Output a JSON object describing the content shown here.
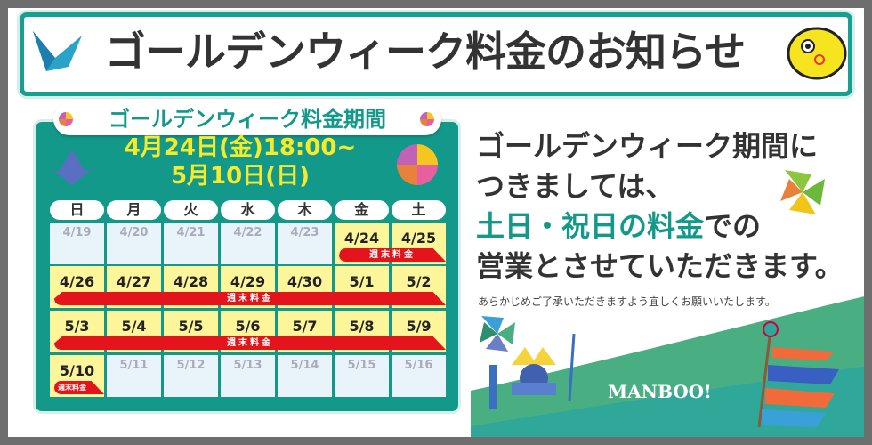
{
  "title": "ゴールデンウィーク料金のお知らせ",
  "calendar": {
    "heading": "ゴールデンウィーク料金期間",
    "period_line1": "4月24日(金)18:00~",
    "period_line2": "5月10日(日)",
    "weekdays": [
      "日",
      "月",
      "火",
      "水",
      "木",
      "金",
      "土"
    ],
    "weeks": [
      [
        {
          "d": "4/19",
          "on": false
        },
        {
          "d": "4/20",
          "on": false
        },
        {
          "d": "4/21",
          "on": false
        },
        {
          "d": "4/22",
          "on": false
        },
        {
          "d": "4/23",
          "on": false
        },
        {
          "d": "4/24",
          "on": true
        },
        {
          "d": "4/25",
          "on": true
        }
      ],
      [
        {
          "d": "4/26",
          "on": true
        },
        {
          "d": "4/27",
          "on": true
        },
        {
          "d": "4/28",
          "on": true
        },
        {
          "d": "4/29",
          "on": true
        },
        {
          "d": "4/30",
          "on": true
        },
        {
          "d": "5/1",
          "on": true
        },
        {
          "d": "5/2",
          "on": true
        }
      ],
      [
        {
          "d": "5/3",
          "on": true
        },
        {
          "d": "5/4",
          "on": true
        },
        {
          "d": "5/5",
          "on": true
        },
        {
          "d": "5/6",
          "on": true
        },
        {
          "d": "5/7",
          "on": true
        },
        {
          "d": "5/8",
          "on": true
        },
        {
          "d": "5/9",
          "on": true
        }
      ],
      [
        {
          "d": "5/10",
          "on": true
        },
        {
          "d": "5/11",
          "on": false
        },
        {
          "d": "5/12",
          "on": false
        },
        {
          "d": "5/13",
          "on": false
        },
        {
          "d": "5/14",
          "on": false
        },
        {
          "d": "5/15",
          "on": false
        },
        {
          "d": "5/16",
          "on": false
        }
      ]
    ],
    "weekend_rate_label": "週末料金"
  },
  "message": {
    "line1": "ゴールデンウィーク期間に",
    "line2": "つきましては、",
    "line3_highlight": "土日・祝日の料金",
    "line3_rest": "での",
    "line4": "営業とさせていただきます。",
    "note": "あらかじめご了承いただきますよう宜しくお願いいたします。"
  },
  "logo": "MANBOO!",
  "colors": {
    "teal": "#13998a",
    "yellow": "#f6ea2a",
    "cell_yellow": "#fdf59a",
    "red": "#e3141b",
    "frame": "#6e6e6e"
  }
}
